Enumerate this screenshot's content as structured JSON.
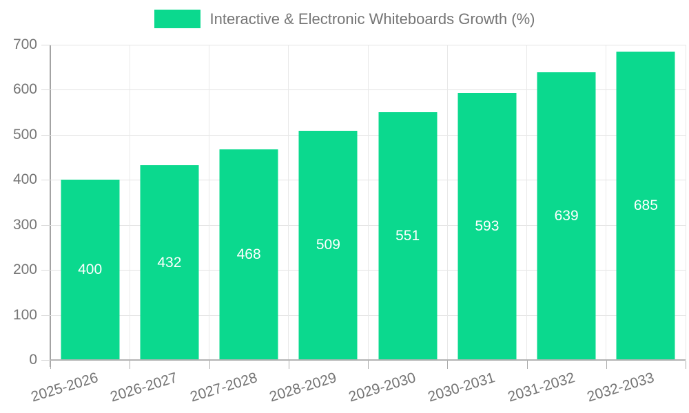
{
  "legend": {
    "label": "Interactive & Electronic Whiteboards Growth (%)"
  },
  "chart_data": {
    "type": "bar",
    "title": "Interactive & Electronic Whiteboards Growth (%)",
    "categories": [
      "2025-2026",
      "2026-2027",
      "2027-2028",
      "2028-2029",
      "2029-2030",
      "2030-2031",
      "2031-2032",
      "2032-2033"
    ],
    "values": [
      400,
      432,
      468,
      509,
      551,
      593,
      639,
      685
    ],
    "bar_labels": [
      "400",
      "432",
      "468",
      "509",
      "551",
      "593",
      "639",
      "685"
    ],
    "xlabel": "",
    "ylabel": "",
    "ylim": [
      0,
      700
    ],
    "ytick_step": 100,
    "yticks": [
      0,
      100,
      200,
      300,
      400,
      500,
      600,
      700
    ],
    "grid": true,
    "legend_position": "top",
    "colors": {
      "bar": "#0bd98e",
      "bar_label_text": "#ffffff",
      "axis_text": "#757575",
      "gridline": "#e3e3e3",
      "y_axis_line": "#a3a3a3",
      "x_axis_line": "#b3b3b3",
      "background": "#ffffff"
    }
  }
}
